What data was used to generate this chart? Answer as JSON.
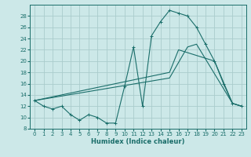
{
  "background_color": "#cce8e8",
  "grid_color": "#aacccc",
  "line_color": "#1a6e6a",
  "xlabel": "Humidex (Indice chaleur)",
  "xlim": [
    -0.5,
    23.5
  ],
  "ylim": [
    8,
    30
  ],
  "xticks": [
    0,
    1,
    2,
    3,
    4,
    5,
    6,
    7,
    8,
    9,
    10,
    11,
    12,
    13,
    14,
    15,
    16,
    17,
    18,
    19,
    20,
    21,
    22,
    23
  ],
  "yticks": [
    8,
    10,
    12,
    14,
    16,
    18,
    20,
    22,
    24,
    26,
    28
  ],
  "curve1_x": [
    0,
    1,
    2,
    3,
    4,
    5,
    6,
    7,
    8,
    9,
    10,
    11,
    12,
    13,
    14,
    15,
    16,
    17,
    18,
    19,
    20,
    21,
    22,
    23
  ],
  "curve1_y": [
    13,
    12,
    11.5,
    12,
    10.5,
    9.5,
    10.5,
    10,
    9,
    9,
    15.5,
    22.5,
    12,
    24.5,
    27,
    29,
    28.5,
    28,
    26,
    23,
    20,
    16,
    12.5,
    12
  ],
  "curve2_x": [
    0,
    15,
    16,
    20,
    22,
    23
  ],
  "curve2_y": [
    13,
    18,
    22,
    20,
    12.5,
    12
  ],
  "curve3_x": [
    0,
    15,
    17,
    18,
    22,
    23
  ],
  "curve3_y": [
    13,
    17,
    22.5,
    23,
    12.5,
    12
  ],
  "xlabel_fontsize": 6,
  "tick_fontsize": 5
}
